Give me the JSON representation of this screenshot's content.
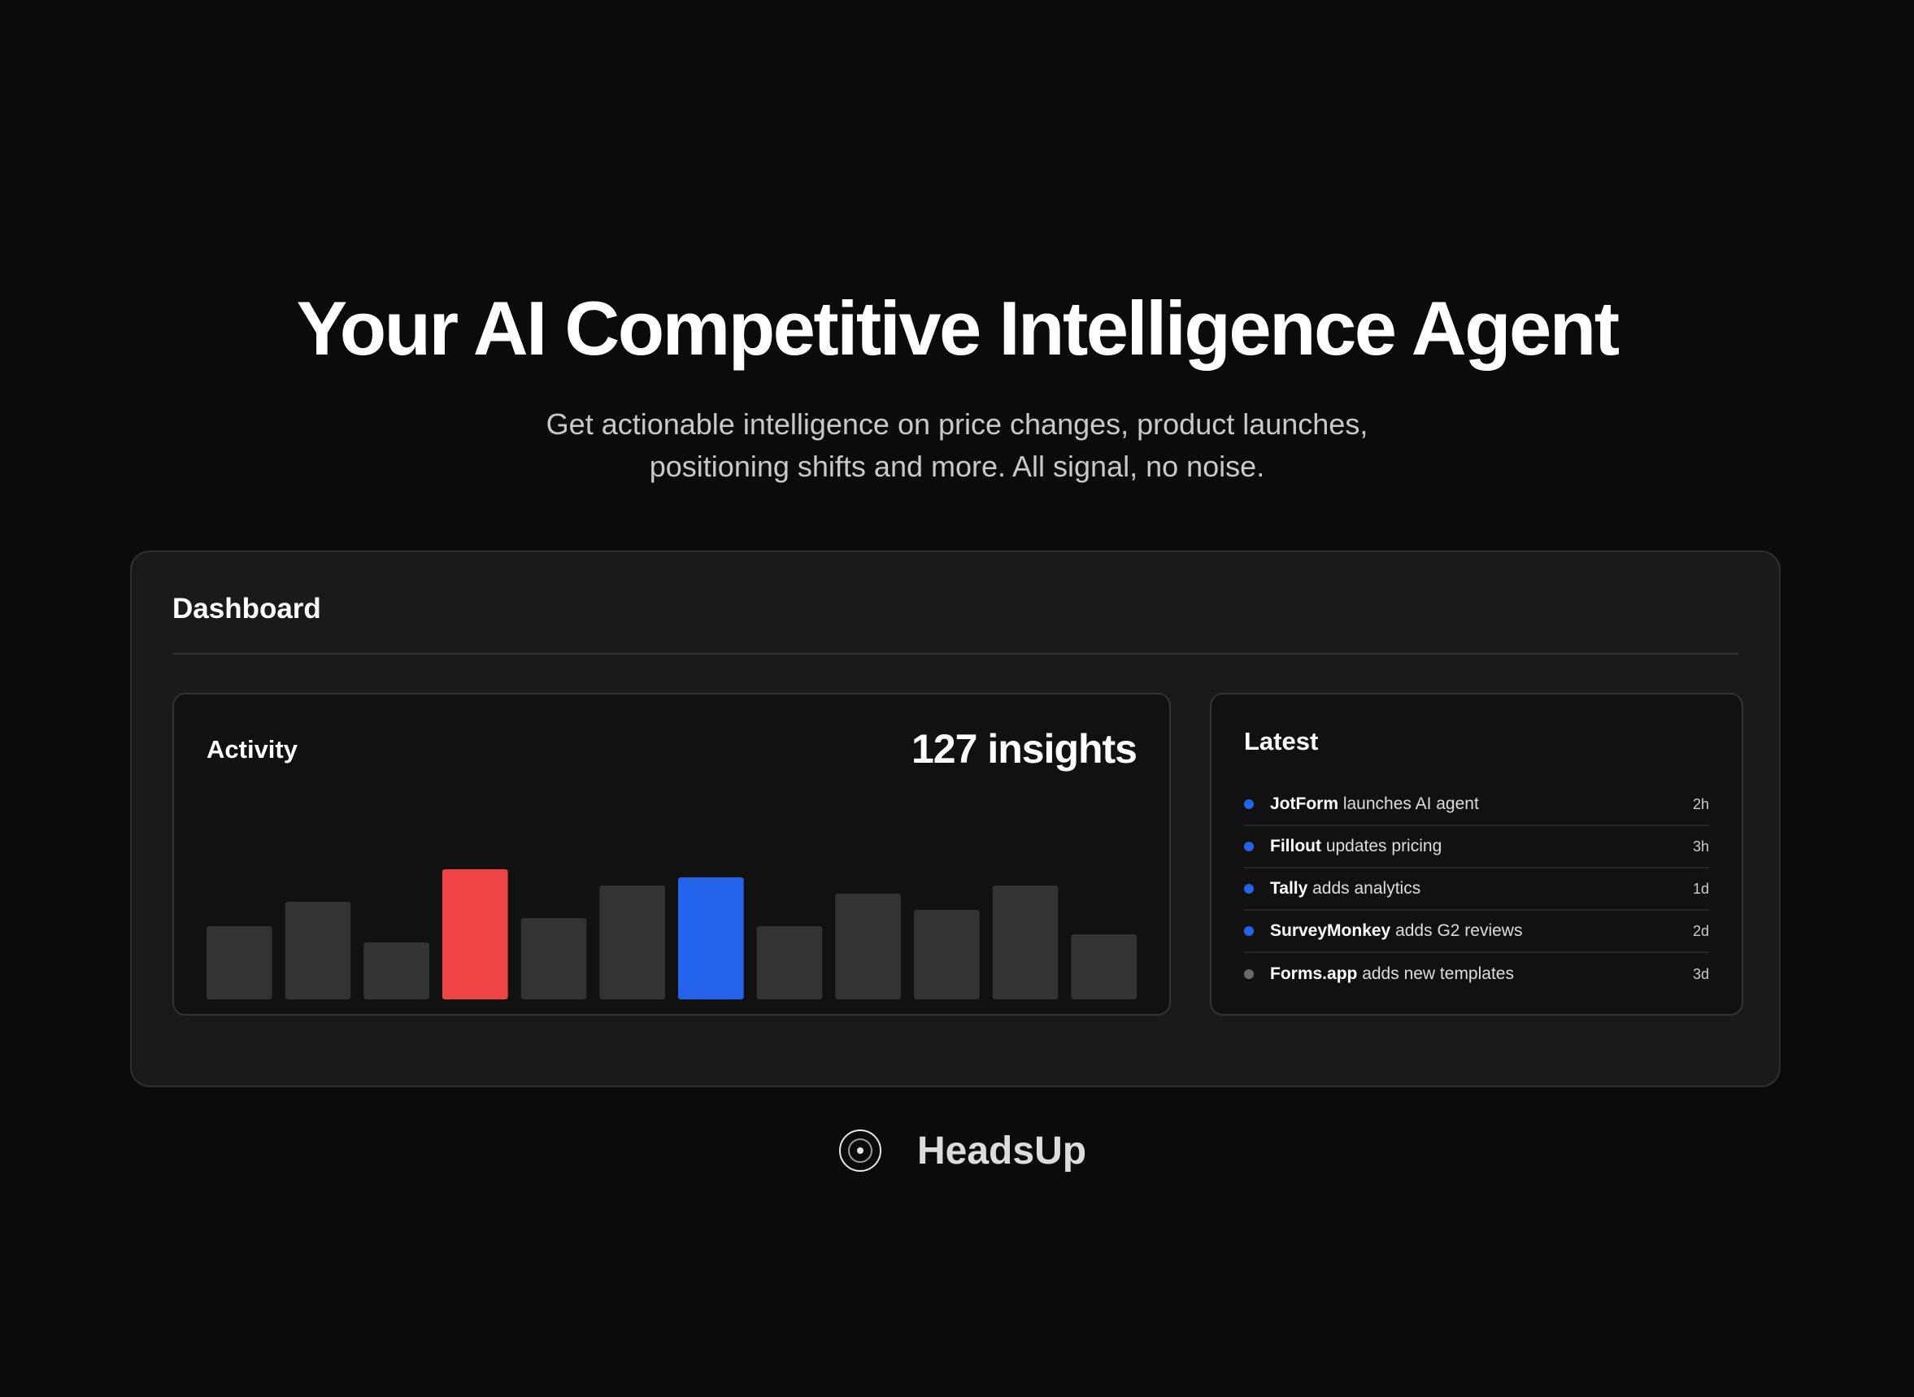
{
  "hero": {
    "title": "Your AI Competitive Intelligence Agent",
    "subtitle_lines": [
      "Get actionable intelligence on price changes, product launches,",
      "positioning shifts and more. All signal, no noise."
    ]
  },
  "dashboard": {
    "title": "Dashboard",
    "activity": {
      "label": "Activity",
      "count": "127 insights"
    },
    "latest": {
      "title": "Latest",
      "items": [
        {
          "company": "JotForm",
          "text": " launches AI agent",
          "time": "2h",
          "dot_color": "#2563eb"
        },
        {
          "company": "Fillout",
          "text": " updates pricing",
          "time": "3h",
          "dot_color": "#2563eb"
        },
        {
          "company": "Tally",
          "text": " adds analytics",
          "time": "1d",
          "dot_color": "#2563eb"
        },
        {
          "company": "SurveyMonkey",
          "text": " adds G2 reviews",
          "time": "2d",
          "dot_color": "#2563eb"
        },
        {
          "company": "Forms.app",
          "text": " adds new templates",
          "time": "3d",
          "dot_color": "#6b6b6b"
        }
      ]
    }
  },
  "chart_data": {
    "type": "bar",
    "values": [
      9,
      12,
      7,
      16,
      10,
      14,
      15,
      9,
      13,
      11,
      14,
      8
    ],
    "colors": [
      "#333333",
      "#333333",
      "#333333",
      "#ef4444",
      "#333333",
      "#333333",
      "#2563eb",
      "#333333",
      "#333333",
      "#333333",
      "#333333",
      "#333333"
    ],
    "ylim": [
      0,
      16
    ],
    "grid": false
  },
  "brand": {
    "name": "HeadsUp",
    "icon": "target-circle-icon"
  }
}
